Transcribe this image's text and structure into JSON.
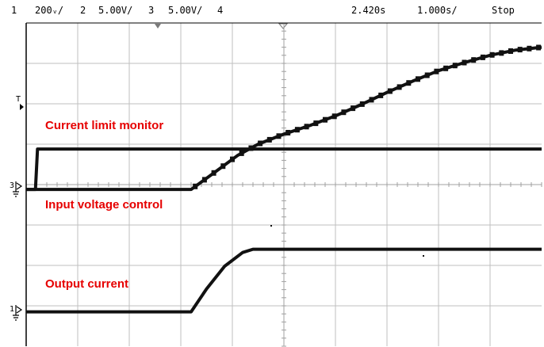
{
  "header": {
    "ch1_label": "1",
    "ch1_scale": "200ᵥ/",
    "ch2_label": "2",
    "ch2_scale": "5.00V/",
    "ch3_label": "3",
    "ch3_scale": "5.00V/",
    "ch4_label": "4",
    "time_position": "2.420s",
    "time_scale": "1.000s/",
    "run_state": "Stop"
  },
  "markers": {
    "trigger": "T",
    "ch3_ground": "3",
    "ch1_ground": "1"
  },
  "colors": {
    "trace": "#111111",
    "grid": "#bfbfbf",
    "annotation": "#e60000"
  },
  "chart_data": {
    "type": "line",
    "x_unit": "s",
    "x_divisions": 10,
    "y_divisions": 8,
    "xlim": [
      0,
      10
    ],
    "ylim": [
      0,
      8
    ],
    "series": [
      {
        "name": "Current limit monitor",
        "x": [
          0.0,
          0.18,
          0.22,
          10.0
        ],
        "y": [
          3.88,
          3.88,
          4.88,
          4.88
        ]
      },
      {
        "name": "Input voltage control",
        "x": [
          0.0,
          3.2,
          3.6,
          4.1,
          4.5,
          5.0,
          5.5,
          6.0,
          6.5,
          7.0,
          7.5,
          8.0,
          8.5,
          9.0,
          9.5,
          10.0
        ],
        "y": [
          3.88,
          3.88,
          4.25,
          4.72,
          5.0,
          5.25,
          5.46,
          5.7,
          5.98,
          6.28,
          6.56,
          6.82,
          7.02,
          7.2,
          7.33,
          7.4
        ]
      },
      {
        "name": "Output current",
        "x": [
          0.0,
          3.2,
          3.5,
          3.85,
          4.2,
          4.4,
          10.0
        ],
        "y": [
          0.85,
          0.85,
          1.42,
          1.98,
          2.32,
          2.4,
          2.4
        ]
      }
    ],
    "annotations": [
      "Current limit monitor",
      "Input voltage control",
      "Output current"
    ]
  }
}
